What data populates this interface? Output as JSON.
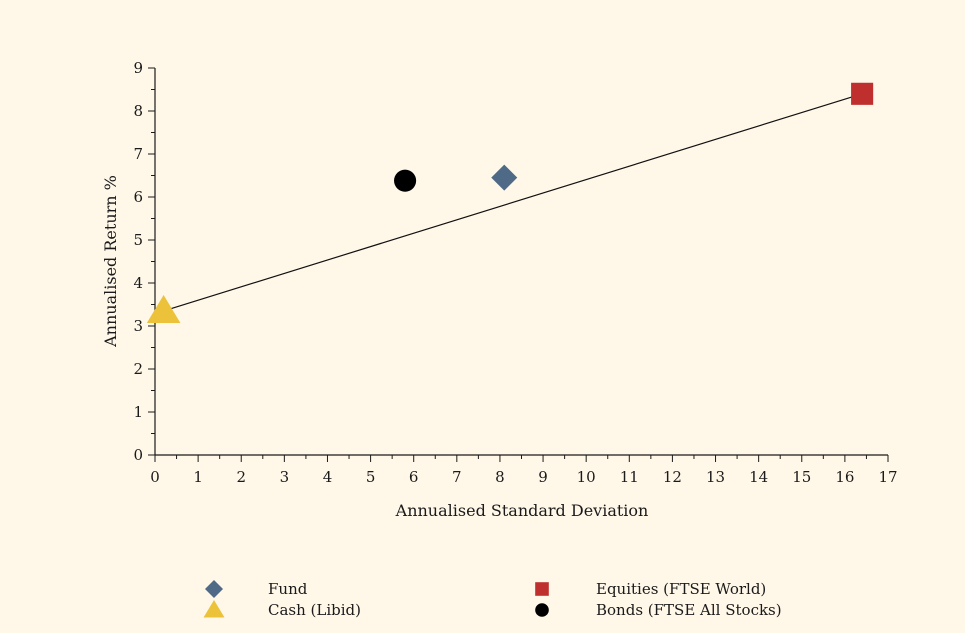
{
  "colors": {
    "background": "#fff8e9",
    "fund": "#4f6a87",
    "cash": "#ecc23a",
    "equities": "#bf2f2d",
    "bonds": "#000000",
    "axis": "#1a1a1a"
  },
  "chart_data": {
    "type": "scatter",
    "xlabel": "Annualised Standard Deviation",
    "ylabel": "Annualised Return %",
    "xlim": [
      0,
      17
    ],
    "ylim": [
      0,
      9
    ],
    "xticks": [
      0,
      1,
      2,
      3,
      4,
      5,
      6,
      7,
      8,
      9,
      10,
      11,
      12,
      13,
      14,
      15,
      16,
      17
    ],
    "yticks": [
      0,
      1,
      2,
      3,
      4,
      5,
      6,
      7,
      8,
      9
    ],
    "grid": false,
    "legend_position": "bottom",
    "series": [
      {
        "name": "Fund",
        "marker": "diamond",
        "color": "#4f6a87",
        "x": 8.1,
        "y": 6.45
      },
      {
        "name": "Equities (FTSE World)",
        "marker": "square",
        "color": "#bf2f2d",
        "x": 16.4,
        "y": 8.4
      },
      {
        "name": "Cash (Libid)",
        "marker": "triangle",
        "color": "#ecc23a",
        "x": 0.2,
        "y": 3.35
      },
      {
        "name": "Bonds (FTSE All Stocks)",
        "marker": "circle",
        "color": "#000000",
        "x": 5.8,
        "y": 6.38
      }
    ],
    "line": {
      "from": {
        "x": 0.2,
        "y": 3.35
      },
      "to": {
        "x": 16.4,
        "y": 8.4
      }
    }
  }
}
